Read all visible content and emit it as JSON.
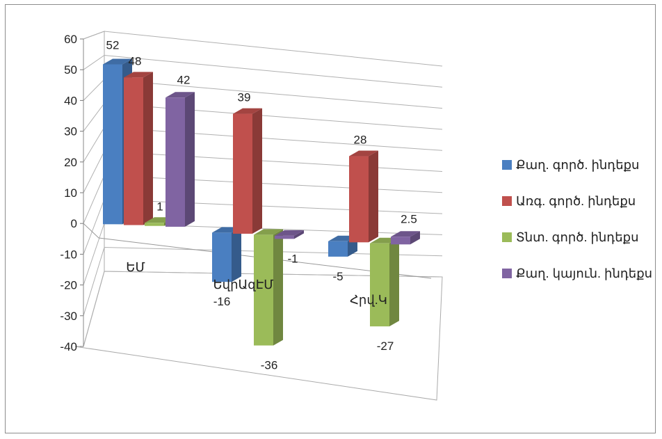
{
  "chart_data": {
    "type": "bar",
    "subtype": "3d-clustered-column",
    "categories": [
      "ԵՄ",
      "ԵվրԱզԷՄ",
      "Հրվ.Կ"
    ],
    "series": [
      {
        "name": "Քաղ. գործ. ինդեքս",
        "color": "#4a7fc1",
        "values": [
          52,
          -16,
          -5
        ],
        "labels": [
          "52",
          "-16",
          "-5"
        ]
      },
      {
        "name": "Առգ. գործ. ինդեքս",
        "color": "#c0504d",
        "values": [
          48,
          39,
          28
        ],
        "labels": [
          "48",
          "39",
          "28"
        ]
      },
      {
        "name": "Տնտ. գործ. ինդեքս",
        "color": "#9bbb59",
        "values": [
          1,
          -36,
          -27
        ],
        "labels": [
          "1",
          "-36",
          "-27"
        ]
      },
      {
        "name": "Քաղ. կայուն. ինդեքս",
        "color": "#8064a2",
        "values": [
          42,
          -1,
          2.5
        ],
        "labels": [
          "42",
          "-1",
          "2.5"
        ]
      }
    ],
    "yticks": [
      "60",
      "50",
      "40",
      "30",
      "20",
      "10",
      "0",
      "-10",
      "-20",
      "-30",
      "-40"
    ],
    "ylim": [
      -40,
      60
    ],
    "grid": true,
    "legend": "right"
  }
}
